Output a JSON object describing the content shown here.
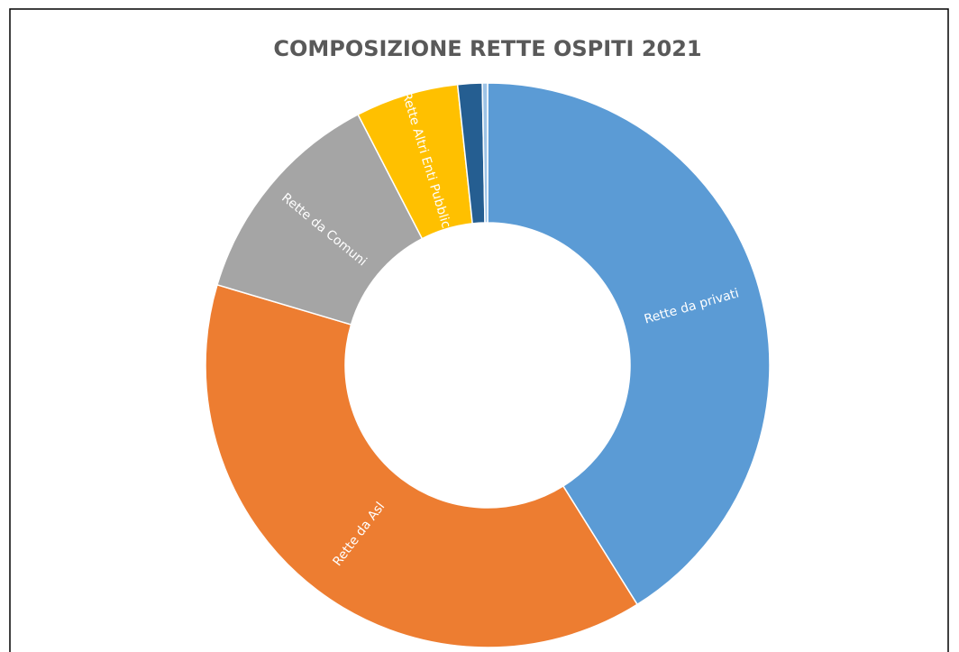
{
  "chart_data": {
    "type": "donut",
    "title": "COMPOSIZIONE RETTE OSPITI 2021",
    "categories": [
      "Rette da privati",
      "Rette da Asl",
      "Rette da Comuni",
      "Rette  Altri Enti Pubblici",
      null,
      null
    ],
    "values": [
      41.1,
      38.5,
      12.8,
      5.9,
      1.4,
      0.3
    ],
    "colors": [
      "#5b9bd5",
      "#ed7d31",
      "#a5a5a5",
      "#ffc000",
      "#255e91",
      "#9dc3e6"
    ]
  }
}
